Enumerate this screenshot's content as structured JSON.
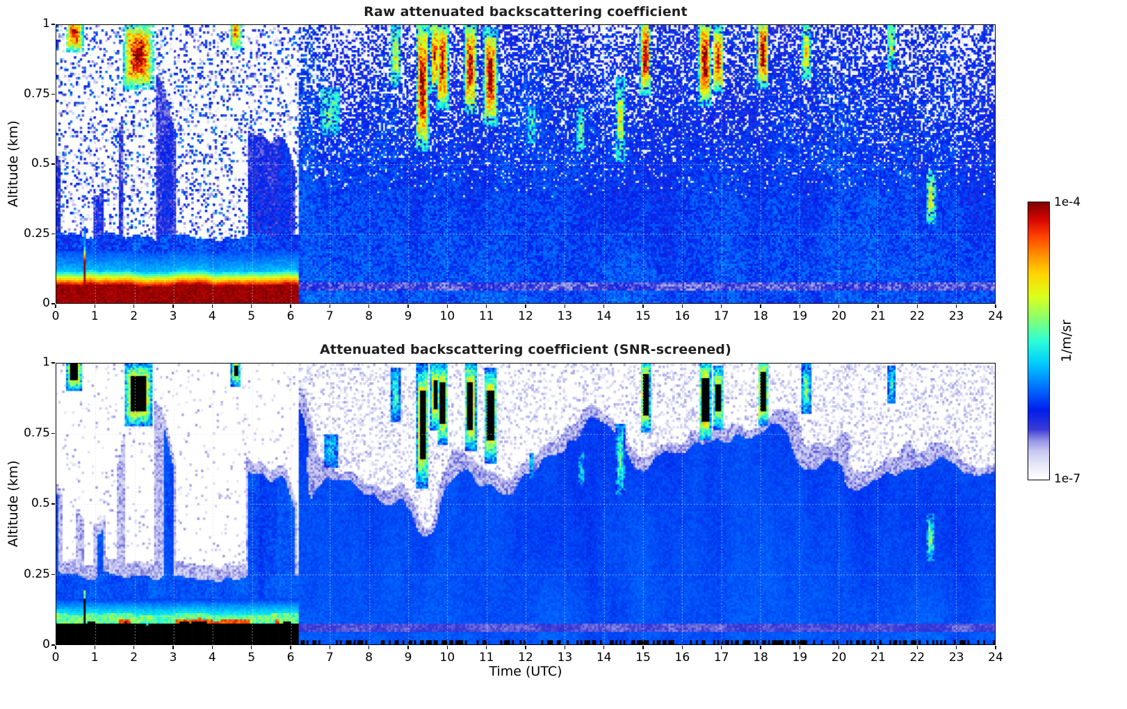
{
  "figure": {
    "panels": [
      {
        "id": "raw",
        "title": "Raw attenuated backscattering coefficient",
        "ylabel": "Altitude (km)"
      },
      {
        "id": "screened",
        "title": "Attenuated backscattering coefficient (SNR-screened)",
        "ylabel": "Altitude (km)"
      }
    ],
    "xlabel": "Time (UTC)",
    "colorbar": {
      "max_label": "1e-4",
      "min_label": "1e-7",
      "units": "1/m/sr"
    }
  },
  "chart_data": {
    "type": "heatmap",
    "panels": [
      {
        "title": "Raw attenuated backscattering coefficient",
        "screened": false
      },
      {
        "title": "Attenuated backscattering coefficient (SNR-screened)",
        "screened": true
      }
    ],
    "x": {
      "label": "Time (UTC)",
      "min": 0,
      "max": 24,
      "ticks": [
        0,
        1,
        2,
        3,
        4,
        5,
        6,
        7,
        8,
        9,
        10,
        11,
        12,
        13,
        14,
        15,
        16,
        17,
        18,
        19,
        20,
        21,
        22,
        23,
        24
      ]
    },
    "y": {
      "label": "Altitude (km)",
      "min": 0,
      "max": 1,
      "ticks": [
        0,
        0.25,
        0.5,
        0.75,
        1
      ],
      "tick_labels": [
        "0",
        "0.25",
        "0.5",
        "0.75",
        "1"
      ]
    },
    "color_scale": {
      "type": "log",
      "min": 1e-07,
      "max": 0.0001,
      "min_label": "1e-7",
      "max_label": "1e-4",
      "units": "1/m/sr",
      "palette": "white-lavender-to-jet"
    },
    "grid": {
      "visible": true,
      "style": "dotted"
    },
    "features": {
      "transition_time_utc": 6.2,
      "surface_layer": {
        "t": [
          0,
          6.2
        ],
        "z_top": 0.07,
        "raw_value": 0.0001,
        "screened_render": "saturated-black"
      },
      "boundary_layer_cyan_band": {
        "t": [
          0,
          6.2
        ],
        "z": [
          0.07,
          0.16
        ],
        "approx_value": 3e-06
      },
      "convective_plumes": {
        "t": [
          0,
          6.2
        ],
        "z_range": [
          0.16,
          1.0
        ],
        "approx_value": 8e-07,
        "note": "intermittent vertical columns separated by clear (screened-white) gaps"
      },
      "residual_field": {
        "t": [
          6.2,
          24
        ],
        "approx_value": 5e-07,
        "note": "continuous weak backscatter; SNR-screened white in patches above ~0.6 km"
      },
      "near_surface_light_band": {
        "t": [
          6.2,
          24
        ],
        "z": [
          0.05,
          0.08
        ]
      },
      "clouds": [
        {
          "t": [
            0.3,
            0.62
          ],
          "z": [
            0.94,
            1.0
          ],
          "i": 0.9
        },
        {
          "t": [
            1.75,
            2.45
          ],
          "z": [
            0.8,
            0.98
          ],
          "i": 1.0
        },
        {
          "t": [
            4.52,
            4.66
          ],
          "z": [
            0.95,
            1.0
          ],
          "i": 0.7
        },
        {
          "t": [
            6.7,
            7.3
          ],
          "z": [
            0.6,
            0.78
          ],
          "i": 0.32
        },
        {
          "t": [
            8.6,
            8.75
          ],
          "z": [
            0.78,
            1.0
          ],
          "i": 0.45
        },
        {
          "t": [
            9.28,
            9.45
          ],
          "z": [
            0.56,
            1.0
          ],
          "i": 1.0
        },
        {
          "t": [
            9.62,
            9.74
          ],
          "z": [
            0.78,
            1.0
          ],
          "i": 0.8
        },
        {
          "t": [
            9.8,
            9.95
          ],
          "z": [
            0.72,
            1.0
          ],
          "i": 0.9
        },
        {
          "t": [
            10.5,
            10.68
          ],
          "z": [
            0.7,
            1.0
          ],
          "i": 0.95
        },
        {
          "t": [
            11.0,
            11.2
          ],
          "z": [
            0.66,
            0.97
          ],
          "i": 1.0
        },
        {
          "t": [
            12.1,
            12.2
          ],
          "z": [
            0.58,
            0.7
          ],
          "i": 0.3
        },
        {
          "t": [
            13.35,
            13.48
          ],
          "z": [
            0.55,
            0.7
          ],
          "i": 0.35
        },
        {
          "t": [
            14.35,
            14.5
          ],
          "z": [
            0.5,
            0.82
          ],
          "i": 0.45
        },
        {
          "t": [
            15.0,
            15.12
          ],
          "z": [
            0.78,
            1.0
          ],
          "i": 1.0
        },
        {
          "t": [
            16.5,
            16.68
          ],
          "z": [
            0.74,
            1.0
          ],
          "i": 1.0
        },
        {
          "t": [
            16.85,
            17.0
          ],
          "z": [
            0.78,
            0.98
          ],
          "i": 0.8
        },
        {
          "t": [
            18.0,
            18.14
          ],
          "z": [
            0.8,
            1.0
          ],
          "i": 1.0
        },
        {
          "t": [
            19.1,
            19.25
          ],
          "z": [
            0.82,
            1.0
          ],
          "i": 0.5
        },
        {
          "t": [
            21.3,
            21.42
          ],
          "z": [
            0.85,
            1.0
          ],
          "i": 0.4
        },
        {
          "t": [
            22.3,
            22.42
          ],
          "z": [
            0.3,
            0.46
          ],
          "i": 0.5
        }
      ]
    }
  }
}
